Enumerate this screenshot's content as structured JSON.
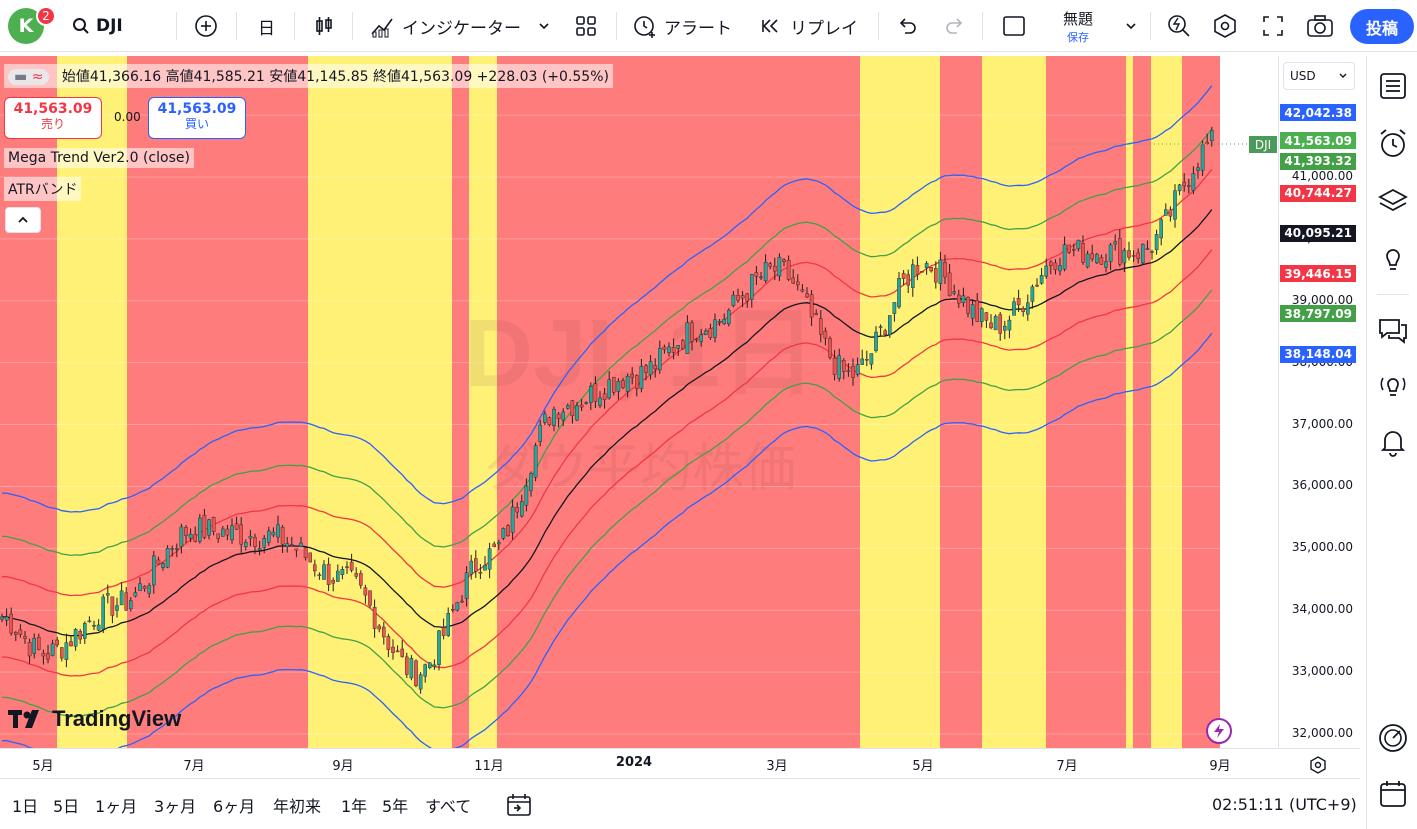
{
  "topbar": {
    "avatar_letter": "K",
    "notification_count": "2",
    "symbol": "DJI",
    "interval": "日",
    "indicators_label": "インジケーター",
    "alert_label": "アラート",
    "replay_label": "リプレイ",
    "layout_name": "無題",
    "layout_save": "保存",
    "publish_label": "投稿"
  },
  "legend": {
    "ohlc": "始値41,366.16 高値41,585.21 安値41,145.85 終値41,563.09 +228.03 (+0.55%)",
    "sell_price": "41,563.09",
    "sell_label": "売り",
    "spread": "0.00",
    "buy_price": "41,563.09",
    "buy_label": "買い",
    "indicator1": "Mega Trend Ver2.0 (close)",
    "indicator2": "ATRバンド"
  },
  "watermark": {
    "line1": "DJI, 1日",
    "line2": "ダウ平均株価"
  },
  "branding": "TradingView",
  "price_axis": {
    "currency": "USD",
    "labels": [
      "41,000.00",
      "40,000.00",
      "39,000.00",
      "38,000.00",
      "37,000.00",
      "36,000.00",
      "35,000.00",
      "34,000.00",
      "33,000.00",
      "32,000.00"
    ],
    "tags": [
      {
        "text": "42,042.38",
        "color": "#2962ff"
      },
      {
        "text": "41,563.09",
        "color": "#4caf50"
      },
      {
        "text": "41,393.32",
        "color": "#43a047"
      },
      {
        "text": "40,744.27",
        "color": "#f23645"
      },
      {
        "text": "40,095.21",
        "color": "#131722"
      },
      {
        "text": "39,446.15",
        "color": "#f23645"
      },
      {
        "text": "38,797.09",
        "color": "#43a047"
      },
      {
        "text": "38,148.04",
        "color": "#2962ff"
      }
    ],
    "symbol_tag": "DJI"
  },
  "time_axis": {
    "labels": [
      "5月",
      "7月",
      "9月",
      "11月",
      "2024",
      "3月",
      "5月",
      "7月",
      "9月"
    ]
  },
  "ranges": [
    "1日",
    "5日",
    "1ヶ月",
    "3ヶ月",
    "6ヶ月",
    "年初来",
    "1年",
    "5年",
    "すべて"
  ],
  "clock": "02:51:11 (UTC+9)",
  "colors": {
    "bg_red": "#ff7c7c",
    "bg_yellow": "#fff176",
    "up": "#26a69a",
    "down": "#ef5350",
    "accent": "#2962ff"
  },
  "chart_data": {
    "type": "candlestick",
    "title": "DJI, 1日",
    "ylim": [
      31900,
      42600
    ],
    "x": [
      "2023-04",
      "2023-05",
      "2023-06",
      "2023-07",
      "2023-08",
      "2023-09",
      "2023-10",
      "2023-11",
      "2023-12",
      "2024-01",
      "2024-02",
      "2024-03",
      "2024-04",
      "2024-05",
      "2024-06",
      "2024-07",
      "2024-08",
      "2024-09"
    ],
    "close": [
      33900,
      33300,
      34100,
      35300,
      35200,
      34500,
      33000,
      34900,
      37300,
      37800,
      38600,
      39500,
      37800,
      39600,
      38600,
      39800,
      39800,
      41563
    ],
    "last_close": 41563.09,
    "regime_bands": [
      "red",
      "yellow",
      "red",
      "yellow",
      "red",
      "yellow",
      "red",
      "yellow",
      "red",
      "yellow",
      "red",
      "yellow",
      "red",
      "yellow",
      "red"
    ]
  }
}
